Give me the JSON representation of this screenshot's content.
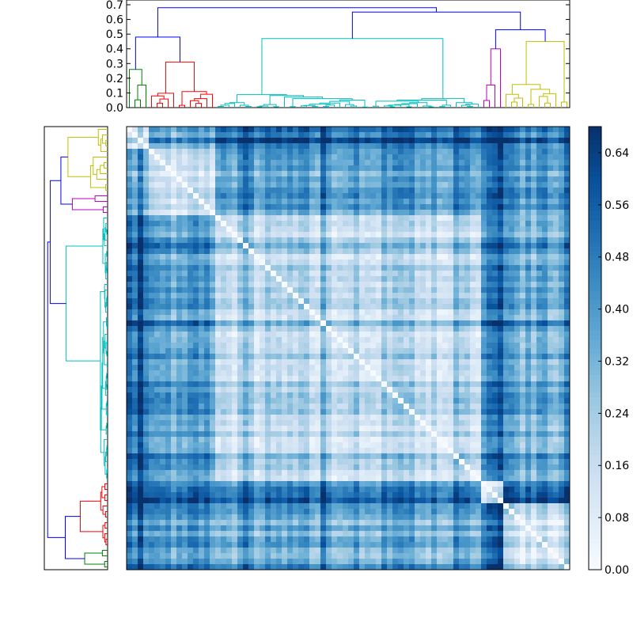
{
  "chart_data": [
    {
      "type": "dendrogram",
      "panel": "top",
      "orientation": "top",
      "ylim": [
        0,
        0.7
      ],
      "yticks": [
        "0.0",
        "0.1",
        "0.2",
        "0.3",
        "0.4",
        "0.5",
        "0.6",
        "0.7"
      ],
      "grid": false,
      "clusters": [
        {
          "color": "#008000",
          "leaves": 4,
          "height": 0.26
        },
        {
          "color": "#ff0000",
          "leaves": 12,
          "height": 0.31
        },
        {
          "color": "#00bfbf",
          "leaves": 48,
          "height": 0.47
        },
        {
          "color": "#bf00bf",
          "leaves": 4,
          "height": 0.4
        },
        {
          "color": "#bfbf00",
          "leaves": 12,
          "height": 0.45
        }
      ],
      "link_color": "#0000ff",
      "upper_links": [
        0.48,
        0.53,
        0.65,
        0.68
      ]
    },
    {
      "type": "dendrogram",
      "panel": "left",
      "orientation": "left",
      "clusters": [
        {
          "color": "#bfbf00",
          "leaves": 12,
          "height": 0.45
        },
        {
          "color": "#bf00bf",
          "leaves": 4,
          "height": 0.4
        },
        {
          "color": "#00bfbf",
          "leaves": 48,
          "height": 0.47
        },
        {
          "color": "#ff0000",
          "leaves": 12,
          "height": 0.31
        },
        {
          "color": "#008000",
          "leaves": 4,
          "height": 0.26
        }
      ],
      "link_color": "#0000ff"
    },
    {
      "type": "heatmap",
      "panel": "matrix",
      "rows": 80,
      "cols": 80,
      "diagonal_value": 0.0,
      "zlim": [
        0,
        0.68
      ],
      "colormap": "Blues",
      "cluster_sizes": [
        4,
        12,
        48,
        4,
        12
      ],
      "block_levels": [
        [
          0.1,
          0.35,
          0.5,
          0.6,
          0.45
        ],
        [
          0.35,
          0.14,
          0.38,
          0.52,
          0.4
        ],
        [
          0.5,
          0.38,
          0.18,
          0.48,
          0.34
        ],
        [
          0.6,
          0.52,
          0.48,
          0.12,
          0.55
        ],
        [
          0.45,
          0.4,
          0.34,
          0.55,
          0.14
        ]
      ]
    },
    {
      "type": "colorbar",
      "panel": "colorbar",
      "zlim": [
        0,
        0.68
      ],
      "ticks": [
        {
          "value": 0.0,
          "label": "0.00"
        },
        {
          "value": 0.08,
          "label": "0.08"
        },
        {
          "value": 0.16,
          "label": "0.16"
        },
        {
          "value": 0.24,
          "label": "0.24"
        },
        {
          "value": 0.32,
          "label": "0.32"
        },
        {
          "value": 0.4,
          "label": "0.40"
        },
        {
          "value": 0.48,
          "label": "0.48"
        },
        {
          "value": 0.56,
          "label": "0.56"
        },
        {
          "value": 0.64,
          "label": "0.64"
        }
      ]
    }
  ]
}
